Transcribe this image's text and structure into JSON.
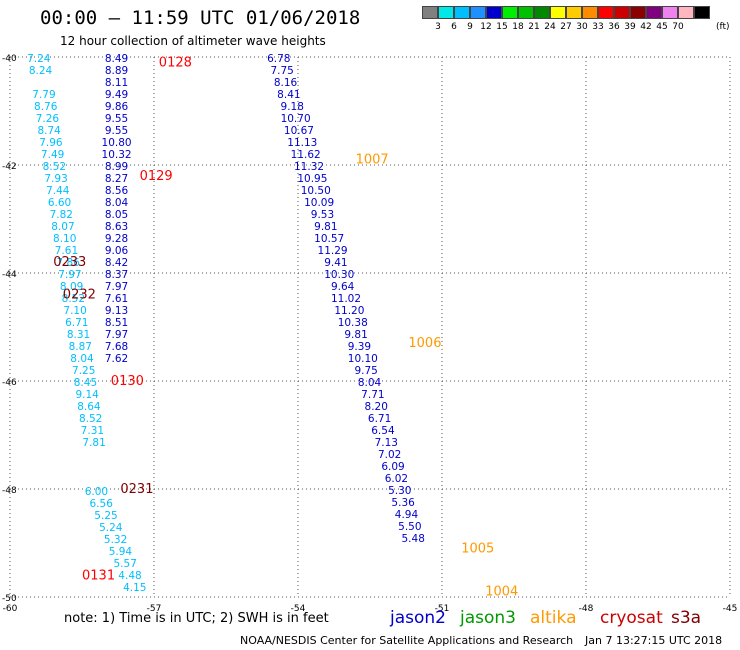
{
  "header": {
    "title": "00:00 – 11:59 UTC 01/06/2018",
    "subtitle": "12 hour collection of altimeter wave heights"
  },
  "colorbar": {
    "colors": [
      "#808080",
      "#00e8e8",
      "#00bfff",
      "#1e90ff",
      "#0000cd",
      "#00ee00",
      "#00c000",
      "#008800",
      "#ffff00",
      "#ffcc00",
      "#ff8c00",
      "#ff0000",
      "#cc0000",
      "#8b0000",
      "#800080",
      "#ee82ee",
      "#ffb6c1",
      "#000000"
    ],
    "labels": [
      "3",
      "6",
      "9",
      "12",
      "15",
      "18",
      "21",
      "24",
      "27",
      "30",
      "33",
      "36",
      "39",
      "42",
      "45",
      "70"
    ],
    "unit": "(ft)"
  },
  "footer": {
    "note": "note:  1) Time is in UTC;  2) SWH is in feet",
    "credit": "NOAA/NESDIS Center for Satellite Applications and Research",
    "stamp": "Jan  7 13:27:15 UTC 2018"
  },
  "satellites": [
    {
      "name": "jason2",
      "color": "#0000cc"
    },
    {
      "name": "jason3",
      "color": "#009900"
    },
    {
      "name": "altika",
      "color": "#ff9900"
    },
    {
      "name": "cryosat",
      "color": "#cc0000"
    },
    {
      "name": "s3a",
      "color": "#800000"
    }
  ],
  "chart_data": {
    "type": "scatter",
    "title": "12 hour collection of altimeter wave heights",
    "xlim": [
      -60,
      -45
    ],
    "ylim": [
      -50,
      -40
    ],
    "x_ticks": [
      -60,
      -57,
      -54,
      -51,
      -48,
      -45
    ],
    "x_tick_labels": [
      "-60",
      "-57",
      "-54",
      "-51",
      "-48",
      "-45"
    ],
    "y_ticks": [
      -40,
      -42,
      -44,
      -46,
      -48,
      -50
    ],
    "y_tick_labels": [
      "-40",
      "-42",
      "-44",
      "-46",
      "-48",
      "-50"
    ],
    "grid": true,
    "tracks": [
      {
        "color": "#0000cc",
        "x0": -57.78,
        "dx": 0.0,
        "values": [
          "8.49",
          "8.89",
          "8.11",
          "9.49",
          "9.86",
          "9.55",
          "9.55",
          "10.80",
          "10.32",
          "8.99",
          "8.27",
          "8.56",
          "8.04",
          "8.05",
          "8.63",
          "9.28",
          "9.06",
          "8.42",
          "8.37",
          "7.97",
          "7.61",
          "9.13",
          "8.51",
          "7.97",
          "7.68",
          "7.62"
        ]
      },
      {
        "color": "#00bfff",
        "x0": -59.4,
        "dx": 0.12,
        "values": [
          "7.24",
          "8.24",
          "",
          "7.79",
          "8.76",
          "7.26",
          "8.74",
          "7.96",
          "7.49",
          "8.52",
          "7.93",
          "7.44",
          "6.60",
          "7.82",
          "8.07",
          "8.10",
          "7.61",
          "7.86",
          "7.97",
          "8.09",
          "8.52",
          "7.10",
          "6.71",
          "8.31",
          "8.87",
          "8.04",
          "7.25",
          "8.45",
          "9.14",
          "8.64",
          "8.52",
          "7.31",
          "7.81"
        ]
      },
      {
        "color": "#0000cc",
        "x0": -54.4,
        "dx": 0.07,
        "values": [
          "6.78",
          "7.75",
          "8.16",
          "8.41",
          "9.18",
          "10.70",
          "10.67",
          "11.13",
          "11.62",
          "11.32",
          "10.95",
          "10.50",
          "10.09",
          "9.53",
          "9.81",
          "10.57",
          "11.29",
          "9.41",
          "10.30",
          "9.64",
          "11.02",
          "11.20",
          "10.38",
          "9.81",
          "9.39",
          "10.10",
          "9.75",
          "8.04",
          "7.71",
          "8.20",
          "6.71",
          "6.54",
          "7.13",
          "7.02",
          "6.09",
          "6.02",
          "5.30",
          "5.36",
          "4.94",
          "5.50",
          "5.48"
        ]
      },
      {
        "color": "#00bfff",
        "x0": -58.2,
        "dx": 0.1,
        "values": [
          "6.00",
          "6.56",
          "5.25",
          "5.24",
          "5.32",
          "5.94",
          "5.57",
          "4.48",
          "4.15"
        ]
      }
    ],
    "time_labels": [
      {
        "text": "0128",
        "x": -56.9,
        "y": -40.1,
        "color": "#ff0000"
      },
      {
        "text": "0129",
        "x": -57.3,
        "y": -42.2,
        "color": "#ff0000"
      },
      {
        "text": "0130",
        "x": -57.9,
        "y": -46.0,
        "color": "#ff0000"
      },
      {
        "text": "0131",
        "x": -58.5,
        "y": -49.6,
        "color": "#ff0000"
      },
      {
        "text": "0233",
        "x": -59.1,
        "y": -43.8,
        "color": "#800000"
      },
      {
        "text": "0232",
        "x": -58.9,
        "y": -44.4,
        "color": "#800000"
      },
      {
        "text": "0231",
        "x": -57.7,
        "y": -48.0,
        "color": "#800000"
      },
      {
        "text": "1007",
        "x": -52.8,
        "y": -41.9,
        "color": "#ff9900"
      },
      {
        "text": "1006",
        "x": -51.7,
        "y": -45.3,
        "color": "#ff9900"
      },
      {
        "text": "1005",
        "x": -50.6,
        "y": -49.1,
        "color": "#ff9900"
      },
      {
        "text": "1004",
        "x": -50.1,
        "y": -49.9,
        "color": "#ff9900"
      }
    ]
  }
}
